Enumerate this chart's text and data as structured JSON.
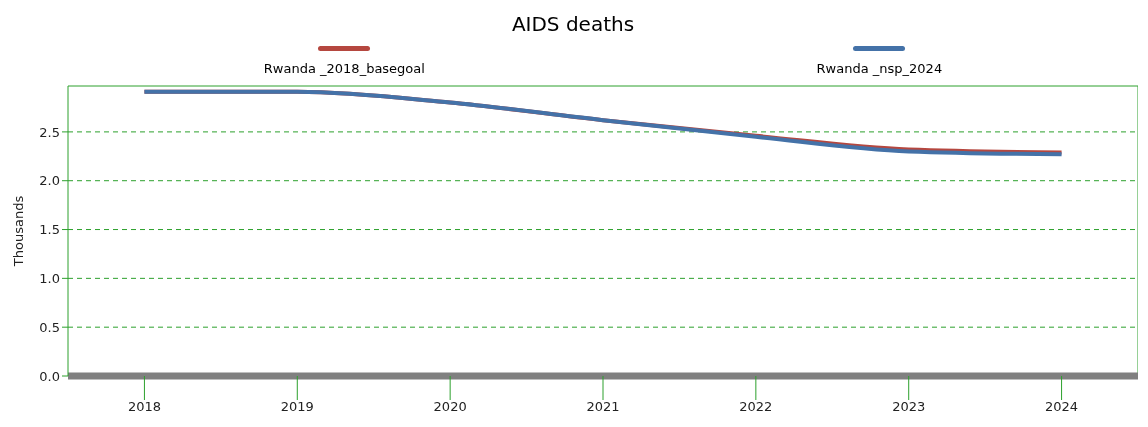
{
  "chart_data": {
    "type": "line",
    "title": "AIDS deaths",
    "ylabel": "Thousands",
    "x": [
      2018,
      2019,
      2020,
      2021,
      2022,
      2023,
      2024
    ],
    "series": [
      {
        "name": "Rwanda _2018_basegoal",
        "color": "#b5473f",
        "values": [
          2.91,
          2.91,
          2.8,
          2.62,
          2.46,
          2.32,
          2.29
        ]
      },
      {
        "name": "Rwanda _nsp_2024",
        "color": "#4472a8",
        "values": [
          2.91,
          2.91,
          2.8,
          2.62,
          2.45,
          2.3,
          2.27
        ]
      }
    ],
    "xlim": [
      2017.5,
      2024.5
    ],
    "xticks": [
      2018,
      2019,
      2020,
      2021,
      2022,
      2023,
      2024
    ],
    "ylim": [
      0,
      2.97
    ],
    "yticks": [
      {
        "value": 0,
        "label": "0.0"
      },
      0.5,
      {
        "value": 1,
        "label": "1.0"
      },
      1.5,
      {
        "value": 2,
        "label": "2.0"
      },
      2.5
    ],
    "grid": "y",
    "legend": "top",
    "marker": "none",
    "line_style": "solid"
  }
}
